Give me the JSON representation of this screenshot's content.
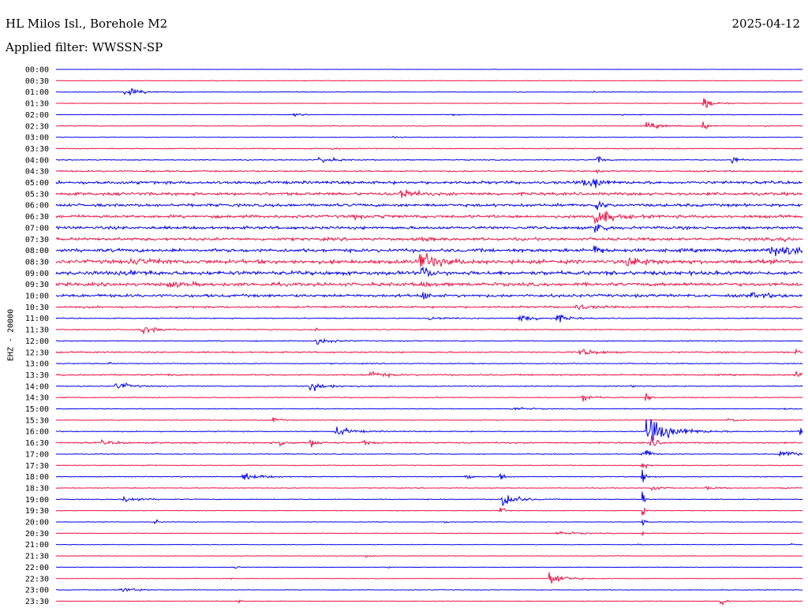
{
  "header": {
    "station": "HL Milos Isl., Borehole M2",
    "filter": "Applied filter: WWSSN-SP",
    "date": "2025-04-12"
  },
  "chart_data": {
    "type": "line",
    "ylabel": "EHZ - 20000",
    "colors": [
      "#0000ee",
      "#ee1144"
    ],
    "rows": [
      {
        "time": "00:00",
        "base": 0.3,
        "events": [
          [
            0.587,
            1,
            3
          ]
        ]
      },
      {
        "time": "00:30",
        "base": 0.6,
        "events": [
          [
            0.33,
            2,
            3
          ]
        ]
      },
      {
        "time": "01:00",
        "base": 0.6,
        "events": [
          [
            0.09,
            9,
            18
          ],
          [
            0.62,
            2,
            4
          ],
          [
            0.72,
            2,
            3
          ]
        ]
      },
      {
        "time": "01:30",
        "base": 0.6,
        "events": [
          [
            0.865,
            13,
            12
          ],
          [
            0.68,
            2,
            4
          ]
        ]
      },
      {
        "time": "02:00",
        "base": 0.6,
        "events": [
          [
            0.318,
            3,
            8
          ],
          [
            0.53,
            5,
            5
          ],
          [
            0.755,
            3,
            5
          ],
          [
            0.778,
            2,
            4
          ]
        ]
      },
      {
        "time": "02:30",
        "base": 0.7,
        "events": [
          [
            0.79,
            6,
            20
          ],
          [
            0.866,
            17,
            4
          ],
          [
            0.95,
            2,
            5
          ]
        ]
      },
      {
        "time": "03:00",
        "base": 0.5,
        "events": [
          [
            0.45,
            2,
            8
          ]
        ]
      },
      {
        "time": "03:30",
        "base": 1.0,
        "events": [
          [
            0.37,
            3,
            6
          ]
        ]
      },
      {
        "time": "04:00",
        "base": 1.0,
        "events": [
          [
            0.352,
            8,
            14
          ],
          [
            0.725,
            12,
            5
          ],
          [
            0.905,
            11,
            6
          ]
        ]
      },
      {
        "time": "04:30",
        "base": 1.5,
        "events": [
          [
            0.12,
            2,
            4
          ],
          [
            0.72,
            3,
            5
          ]
        ]
      },
      {
        "time": "05:00",
        "base": 3.0,
        "events": [
          [
            0.72,
            16,
            6
          ],
          [
            0.705,
            6,
            14
          ]
        ]
      },
      {
        "time": "05:30",
        "base": 3.0,
        "events": [
          [
            0.46,
            12,
            14
          ]
        ]
      },
      {
        "time": "06:00",
        "base": 3.0,
        "events": [
          [
            0.722,
            14,
            6
          ]
        ]
      },
      {
        "time": "06:30",
        "base": 3.0,
        "events": [
          [
            0.72,
            20,
            16
          ],
          [
            0.4,
            8,
            4
          ],
          [
            0.437,
            6,
            4
          ]
        ]
      },
      {
        "time": "07:00",
        "base": 3.0,
        "events": [
          [
            0.72,
            22,
            8
          ]
        ]
      },
      {
        "time": "07:30",
        "base": 3.0,
        "events": [
          [
            0.49,
            6,
            6
          ],
          [
            0.97,
            6,
            6
          ]
        ]
      },
      {
        "time": "08:00",
        "base": 3.5,
        "events": [
          [
            0.72,
            14,
            6
          ],
          [
            0.955,
            9,
            40
          ]
        ]
      },
      {
        "time": "08:30",
        "base": 4.0,
        "events": [
          [
            0.487,
            20,
            18
          ],
          [
            0.765,
            9,
            20
          ],
          [
            0.1,
            5,
            30
          ]
        ]
      },
      {
        "time": "09:00",
        "base": 4.0,
        "events": [
          [
            0.49,
            16,
            8
          ],
          [
            0.09,
            5,
            20
          ]
        ]
      },
      {
        "time": "09:30",
        "base": 3.5,
        "events": [
          [
            0.49,
            10,
            6
          ],
          [
            0.15,
            4,
            20
          ]
        ]
      },
      {
        "time": "10:00",
        "base": 3.0,
        "events": [
          [
            0.49,
            10,
            6
          ],
          [
            0.93,
            5,
            20
          ]
        ]
      },
      {
        "time": "10:30",
        "base": 2.0,
        "events": [
          [
            0.695,
            6,
            16
          ]
        ]
      },
      {
        "time": "11:00",
        "base": 1.0,
        "events": [
          [
            0.62,
            8,
            16
          ],
          [
            0.67,
            7,
            14
          ],
          [
            0.5,
            3,
            20
          ]
        ]
      },
      {
        "time": "11:30",
        "base": 1.0,
        "events": [
          [
            0.115,
            8,
            16
          ],
          [
            0.347,
            4,
            3
          ]
        ]
      },
      {
        "time": "12:00",
        "base": 1.0,
        "events": [
          [
            0.348,
            8,
            14
          ]
        ]
      },
      {
        "time": "12:30",
        "base": 1.5,
        "events": [
          [
            0.7,
            7,
            18
          ],
          [
            0.99,
            8,
            6
          ]
        ]
      },
      {
        "time": "13:00",
        "base": 1.0,
        "events": [
          [
            0.07,
            3,
            3
          ]
        ]
      },
      {
        "time": "13:30",
        "base": 1.5,
        "events": [
          [
            0.42,
            8,
            14
          ],
          [
            0.15,
            3,
            3
          ],
          [
            0.99,
            10,
            6
          ]
        ]
      },
      {
        "time": "14:00",
        "base": 1.0,
        "events": [
          [
            0.08,
            9,
            14
          ],
          [
            0.34,
            10,
            18
          ],
          [
            0.77,
            6,
            3
          ]
        ]
      },
      {
        "time": "14:30",
        "base": 1.0,
        "events": [
          [
            0.705,
            8,
            10
          ],
          [
            0.79,
            16,
            3
          ]
        ]
      },
      {
        "time": "15:00",
        "base": 0.8,
        "events": [
          [
            0.61,
            4,
            16
          ],
          [
            0.975,
            4,
            4
          ]
        ]
      },
      {
        "time": "15:30",
        "base": 0.8,
        "events": [
          [
            0.29,
            8,
            6
          ],
          [
            0.9,
            4,
            10
          ]
        ]
      },
      {
        "time": "16:00",
        "base": 1.0,
        "events": [
          [
            0.79,
            26,
            28
          ],
          [
            0.375,
            9,
            18
          ],
          [
            0.995,
            9,
            18
          ]
        ]
      },
      {
        "time": "16:30",
        "base": 1.5,
        "events": [
          [
            0.3,
            9,
            6
          ],
          [
            0.34,
            8,
            10
          ],
          [
            0.41,
            5,
            8
          ],
          [
            0.06,
            3,
            20
          ],
          [
            0.795,
            18,
            6
          ]
        ]
      },
      {
        "time": "17:00",
        "base": 0.8,
        "events": [
          [
            0.785,
            24,
            6
          ],
          [
            0.97,
            9,
            14
          ]
        ]
      },
      {
        "time": "17:30",
        "base": 0.8,
        "events": [
          [
            0.115,
            4,
            4
          ],
          [
            0.785,
            12,
            4
          ]
        ]
      },
      {
        "time": "18:00",
        "base": 0.8,
        "events": [
          [
            0.25,
            7,
            20
          ],
          [
            0.548,
            8,
            6
          ],
          [
            0.595,
            14,
            4
          ],
          [
            0.785,
            18,
            4
          ]
        ]
      },
      {
        "time": "18:30",
        "base": 0.8,
        "events": [
          [
            0.796,
            9,
            8
          ],
          [
            0.87,
            3,
            12
          ],
          [
            0.97,
            5,
            6
          ]
        ]
      },
      {
        "time": "19:00",
        "base": 0.8,
        "events": [
          [
            0.09,
            8,
            16
          ],
          [
            0.598,
            18,
            14
          ],
          [
            0.785,
            16,
            3
          ]
        ]
      },
      {
        "time": "19:30",
        "base": 0.6,
        "events": [
          [
            0.595,
            12,
            4
          ],
          [
            0.785,
            12,
            3
          ]
        ]
      },
      {
        "time": "20:00",
        "base": 0.6,
        "events": [
          [
            0.132,
            14,
            3
          ],
          [
            0.785,
            14,
            3
          ],
          [
            0.52,
            3,
            3
          ]
        ]
      },
      {
        "time": "20:30",
        "base": 0.6,
        "events": [
          [
            0.67,
            3,
            30
          ],
          [
            0.785,
            9,
            3
          ]
        ]
      },
      {
        "time": "21:00",
        "base": 0.6,
        "events": [
          [
            0.78,
            2,
            3
          ],
          [
            0.985,
            3,
            6
          ]
        ]
      },
      {
        "time": "21:30",
        "base": 0.6,
        "events": [
          [
            0.415,
            4,
            4
          ],
          [
            0.75,
            2,
            3
          ]
        ]
      },
      {
        "time": "22:00",
        "base": 0.5,
        "events": [
          [
            0.24,
            4,
            3
          ],
          [
            0.445,
            3,
            3
          ]
        ]
      },
      {
        "time": "22:30",
        "base": 0.6,
        "events": [
          [
            0.66,
            14,
            16
          ],
          [
            0.23,
            3,
            3
          ]
        ]
      },
      {
        "time": "23:00",
        "base": 0.8,
        "events": [
          [
            0.085,
            7,
            14
          ]
        ]
      },
      {
        "time": "23:30",
        "base": 0.6,
        "events": [
          [
            0.24,
            8,
            4
          ],
          [
            0.89,
            10,
            6
          ]
        ]
      }
    ]
  }
}
